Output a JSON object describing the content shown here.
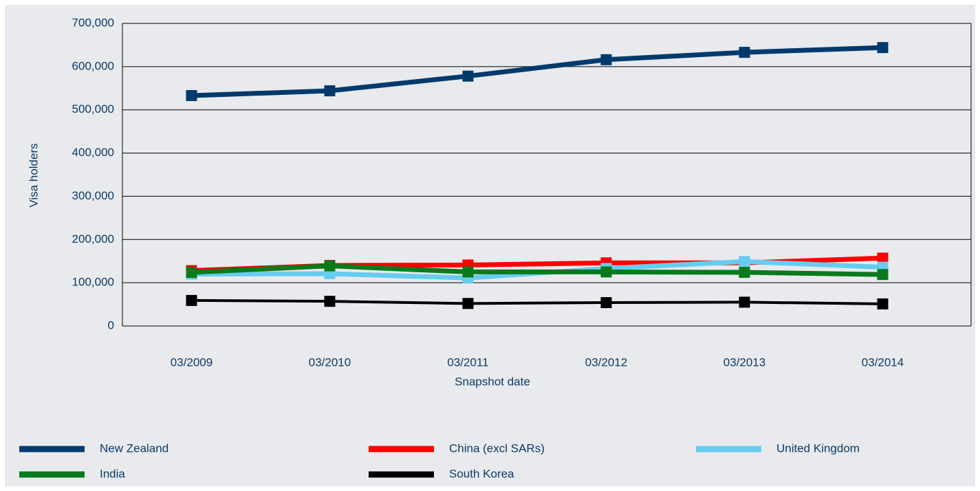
{
  "chart_data": {
    "type": "line",
    "x_label": "Snapshot date",
    "y_label": "Visa holders",
    "categories": [
      "03/2009",
      "03/2010",
      "03/2011",
      "03/2012",
      "03/2013",
      "03/2014"
    ],
    "series": [
      {
        "name": "New Zealand",
        "color": "#003a6d",
        "values": [
          533000,
          544000,
          578000,
          616000,
          633000,
          644000
        ]
      },
      {
        "name": "China (excl SARs)",
        "color": "#ff0000",
        "values": [
          128000,
          140000,
          141000,
          146000,
          146000,
          157000
        ]
      },
      {
        "name": "United Kingdom",
        "color": "#66ccf0",
        "values": [
          120000,
          121000,
          111000,
          133000,
          149000,
          136000
        ]
      },
      {
        "name": "India",
        "color": "#0a7a1c",
        "values": [
          124000,
          139000,
          125000,
          125000,
          124000,
          119000
        ]
      },
      {
        "name": "South Korea",
        "color": "#000000",
        "values": [
          59000,
          57000,
          52000,
          54000,
          55000,
          51000
        ]
      }
    ],
    "ylim": [
      0,
      700000
    ],
    "yticks": [
      0,
      {
        "value": 100000,
        "label": "100,000"
      },
      {
        "value": 200000,
        "label": "200,000"
      },
      {
        "value": 300000,
        "label": "300,000"
      },
      {
        "value": 400000,
        "label": "400,000"
      },
      {
        "value": 500000,
        "label": "500,000"
      },
      {
        "value": 600000,
        "label": "600,000"
      },
      {
        "value": 700000,
        "label": "700,000"
      }
    ],
    "grid": true
  }
}
